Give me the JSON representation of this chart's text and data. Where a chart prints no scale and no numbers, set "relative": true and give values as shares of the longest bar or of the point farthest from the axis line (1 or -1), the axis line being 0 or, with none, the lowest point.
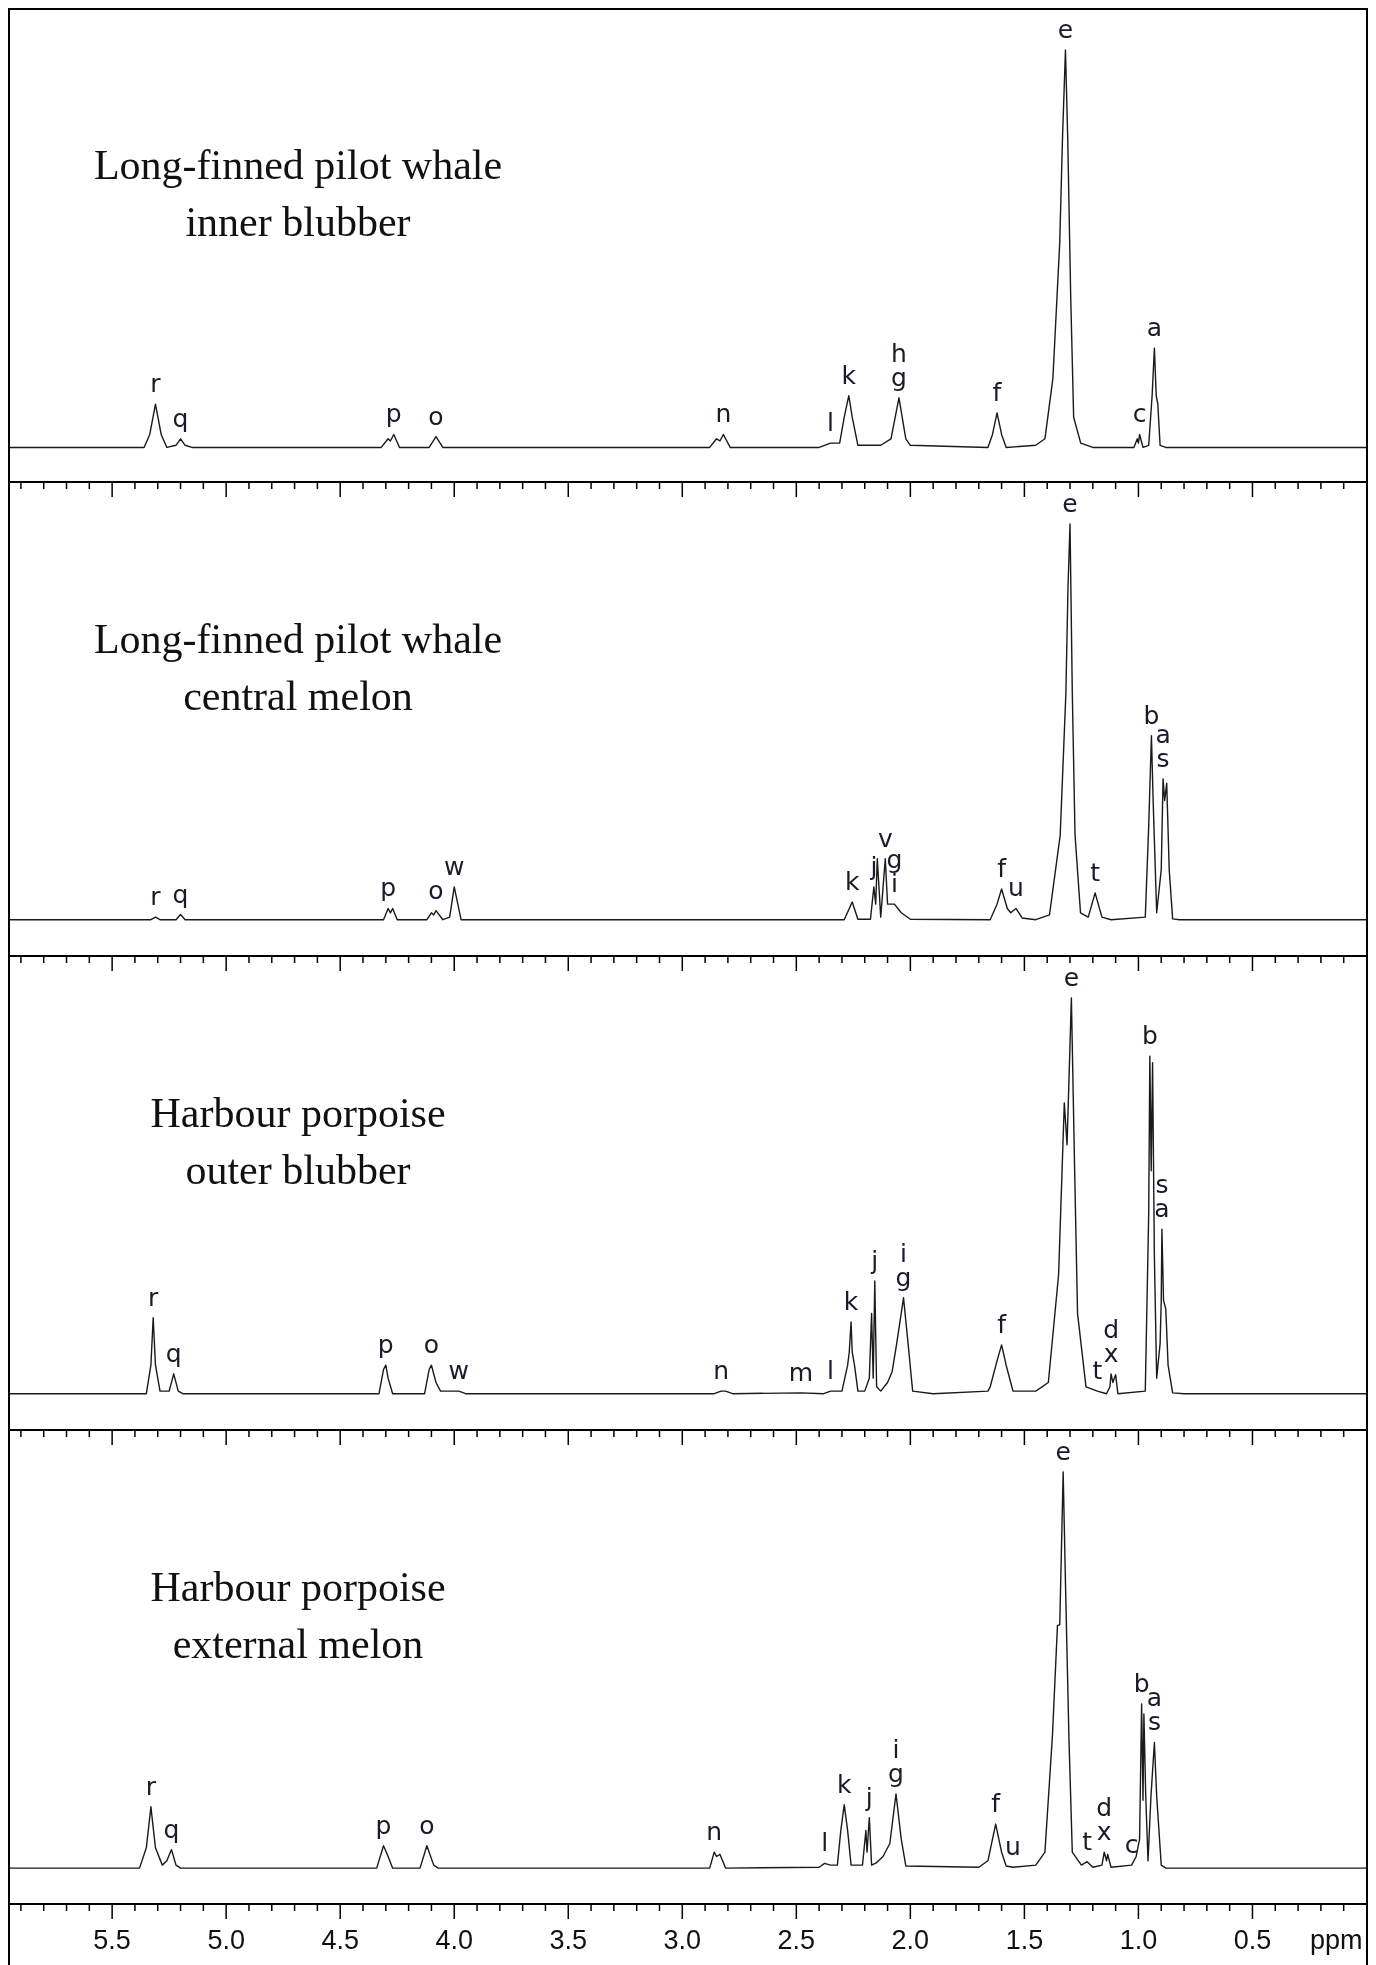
{
  "chart_data": [
    {
      "type": "line",
      "relative": true,
      "title": "Long-finned pilot whale\ninner blubber",
      "xlim": [
        5.95,
        0
      ],
      "tick_labels": false,
      "xticks": [
        {
          "value": 5.9,
          "label": null
        },
        {
          "value": 5.8,
          "label": null
        },
        {
          "value": 5.7,
          "label": null
        },
        {
          "value": 5.6,
          "label": null
        },
        {
          "value": 5.5,
          "label": null
        },
        {
          "value": 5.4,
          "label": null
        },
        {
          "value": 5.3,
          "label": null
        },
        {
          "value": 5.2,
          "label": null
        },
        {
          "value": 5.1,
          "label": null
        },
        {
          "value": 5,
          "label": null
        },
        {
          "value": 4.9,
          "label": null
        },
        {
          "value": 4.8,
          "label": null
        },
        {
          "value": 4.7,
          "label": null
        },
        {
          "value": 4.6,
          "label": null
        },
        {
          "value": 4.5,
          "label": null
        },
        {
          "value": 4.4,
          "label": null
        },
        {
          "value": 4.3,
          "label": null
        },
        {
          "value": 4.2,
          "label": null
        },
        {
          "value": 4.1,
          "label": null
        },
        {
          "value": 4,
          "label": null
        },
        {
          "value": 3.9,
          "label": null
        },
        {
          "value": 3.8,
          "label": null
        },
        {
          "value": 3.7,
          "label": null
        },
        {
          "value": 3.6,
          "label": null
        },
        {
          "value": 3.5,
          "label": null
        },
        {
          "value": 3.4,
          "label": null
        },
        {
          "value": 3.3,
          "label": null
        },
        {
          "value": 3.2,
          "label": null
        },
        {
          "value": 3.1,
          "label": null
        },
        {
          "value": 3,
          "label": null
        },
        {
          "value": 2.9,
          "label": null
        },
        {
          "value": 2.8,
          "label": null
        },
        {
          "value": 2.7,
          "label": null
        },
        {
          "value": 2.6,
          "label": null
        },
        {
          "value": 2.5,
          "label": null
        },
        {
          "value": 2.4,
          "label": null
        },
        {
          "value": 2.3,
          "label": null
        },
        {
          "value": 2.2,
          "label": null
        },
        {
          "value": 2.1,
          "label": null
        },
        {
          "value": 2,
          "label": null
        },
        {
          "value": 1.9,
          "label": null
        },
        {
          "value": 1.8,
          "label": null
        },
        {
          "value": 1.7,
          "label": null
        },
        {
          "value": 1.6,
          "label": null
        },
        {
          "value": 1.5,
          "label": null
        },
        {
          "value": 1.4,
          "label": null
        },
        {
          "value": 1.3,
          "label": null
        },
        {
          "value": 1.2,
          "label": null
        },
        {
          "value": 1.1,
          "label": null
        },
        {
          "value": 1,
          "label": null
        },
        {
          "value": 0.9,
          "label": null
        },
        {
          "value": 0.8,
          "label": null
        },
        {
          "value": 0.7,
          "label": null
        },
        {
          "value": 0.6,
          "label": null
        },
        {
          "value": 0.5,
          "label": null
        },
        {
          "value": 0.4,
          "label": null
        },
        {
          "value": 0.3,
          "label": null
        },
        {
          "value": 0.2,
          "label": null
        },
        {
          "value": 0.1,
          "label": null
        }
      ],
      "x": [
        5.95,
        5.36,
        5.335,
        5.31,
        5.285,
        5.26,
        5.22,
        5.2,
        5.18,
        5.15,
        4.32,
        4.29,
        4.28,
        4.265,
        4.24,
        4.11,
        4.08,
        4.05,
        2.88,
        2.85,
        2.835,
        2.82,
        2.79,
        2.4,
        2.35,
        2.31,
        2.29,
        2.27,
        2.255,
        2.23,
        2.13,
        2.085,
        2.05,
        2.02,
        2.0,
        1.66,
        1.64,
        1.62,
        1.6,
        1.58,
        1.45,
        1.41,
        1.375,
        1.345,
        1.333,
        1.32,
        1.31,
        1.297,
        1.284,
        1.253,
        1.2,
        1.02,
        1.005,
        1.0,
        0.995,
        0.98,
        0.955,
        0.94,
        0.93,
        0.922,
        0.915,
        0.905,
        0.88,
        0.0
      ],
      "series": [
        {
          "color": "#1a1a1a",
          "values": [
            0.08,
            0.08,
            0.11,
            0.18,
            0.11,
            0.08,
            0.085,
            0.1,
            0.085,
            0.08,
            0.08,
            0.1,
            0.095,
            0.11,
            0.08,
            0.08,
            0.105,
            0.08,
            0.08,
            0.1,
            0.095,
            0.11,
            0.08,
            0.08,
            0.09,
            0.09,
            0.15,
            0.2,
            0.15,
            0.085,
            0.085,
            0.1,
            0.195,
            0.1,
            0.085,
            0.08,
            0.11,
            0.16,
            0.11,
            0.08,
            0.085,
            0.1,
            0.24,
            0.555,
            0.795,
            1.0,
            0.795,
            0.43,
            0.15,
            0.09,
            0.08,
            0.08,
            0.1,
            0.09,
            0.11,
            0.08,
            0.085,
            0.2,
            0.31,
            0.2,
            0.18,
            0.085,
            0.08,
            0.08
          ]
        }
      ],
      "annotations": [
        {
          "text": "r",
          "x": 5.31,
          "y": 0.18
        },
        {
          "text": "q",
          "x": 5.2,
          "y": 0.1
        },
        {
          "text": "p",
          "x": 4.265,
          "y": 0.11
        },
        {
          "text": "o",
          "x": 4.08,
          "y": 0.105
        },
        {
          "text": "n",
          "x": 2.82,
          "y": 0.11
        },
        {
          "text": "l",
          "x": 2.35,
          "y": 0.09
        },
        {
          "text": "k",
          "x": 2.27,
          "y": 0.2
        },
        {
          "text": "g",
          "x": 2.05,
          "y": 0.195
        },
        {
          "text": "h",
          "x": 2.05,
          "y": 0.195
        },
        {
          "text": "f",
          "x": 1.62,
          "y": 0.16
        },
        {
          "text": "e",
          "x": 1.32,
          "y": 1.0
        },
        {
          "text": "c",
          "x": 0.995,
          "y": 0.11
        },
        {
          "text": "a",
          "x": 0.93,
          "y": 0.31
        }
      ]
    },
    {
      "type": "line",
      "relative": true,
      "title": "Long-finned pilot whale\ncentral melon",
      "xlim": [
        5.95,
        0
      ],
      "tick_labels": false,
      "xticks": [
        {
          "value": 5.9,
          "label": null
        },
        {
          "value": 5.8,
          "label": null
        },
        {
          "value": 5.7,
          "label": null
        },
        {
          "value": 5.6,
          "label": null
        },
        {
          "value": 5.5,
          "label": null
        },
        {
          "value": 5.4,
          "label": null
        },
        {
          "value": 5.3,
          "label": null
        },
        {
          "value": 5.2,
          "label": null
        },
        {
          "value": 5.1,
          "label": null
        },
        {
          "value": 5,
          "label": null
        },
        {
          "value": 4.9,
          "label": null
        },
        {
          "value": 4.8,
          "label": null
        },
        {
          "value": 4.7,
          "label": null
        },
        {
          "value": 4.6,
          "label": null
        },
        {
          "value": 4.5,
          "label": null
        },
        {
          "value": 4.4,
          "label": null
        },
        {
          "value": 4.3,
          "label": null
        },
        {
          "value": 4.2,
          "label": null
        },
        {
          "value": 4.1,
          "label": null
        },
        {
          "value": 4,
          "label": null
        },
        {
          "value": 3.9,
          "label": null
        },
        {
          "value": 3.8,
          "label": null
        },
        {
          "value": 3.7,
          "label": null
        },
        {
          "value": 3.6,
          "label": null
        },
        {
          "value": 3.5,
          "label": null
        },
        {
          "value": 3.4,
          "label": null
        },
        {
          "value": 3.3,
          "label": null
        },
        {
          "value": 3.2,
          "label": null
        },
        {
          "value": 3.1,
          "label": null
        },
        {
          "value": 3,
          "label": null
        },
        {
          "value": 2.9,
          "label": null
        },
        {
          "value": 2.8,
          "label": null
        },
        {
          "value": 2.7,
          "label": null
        },
        {
          "value": 2.6,
          "label": null
        },
        {
          "value": 2.5,
          "label": null
        },
        {
          "value": 2.4,
          "label": null
        },
        {
          "value": 2.3,
          "label": null
        },
        {
          "value": 2.2,
          "label": null
        },
        {
          "value": 2.1,
          "label": null
        },
        {
          "value": 2,
          "label": null
        },
        {
          "value": 1.9,
          "label": null
        },
        {
          "value": 1.8,
          "label": null
        },
        {
          "value": 1.7,
          "label": null
        },
        {
          "value": 1.6,
          "label": null
        },
        {
          "value": 1.5,
          "label": null
        },
        {
          "value": 1.4,
          "label": null
        },
        {
          "value": 1.3,
          "label": null
        },
        {
          "value": 1.2,
          "label": null
        },
        {
          "value": 1.1,
          "label": null
        },
        {
          "value": 1,
          "label": null
        },
        {
          "value": 0.9,
          "label": null
        },
        {
          "value": 0.8,
          "label": null
        },
        {
          "value": 0.7,
          "label": null
        },
        {
          "value": 0.6,
          "label": null
        },
        {
          "value": 0.5,
          "label": null
        },
        {
          "value": 0.4,
          "label": null
        },
        {
          "value": 0.3,
          "label": null
        },
        {
          "value": 0.2,
          "label": null
        },
        {
          "value": 0.1,
          "label": null
        }
      ],
      "x": [
        5.95,
        5.33,
        5.31,
        5.29,
        5.22,
        5.2,
        5.18,
        4.31,
        4.29,
        4.28,
        4.27,
        4.25,
        4.12,
        4.1,
        4.09,
        4.08,
        4.05,
        4.02,
        4.0,
        3.97,
        2.29,
        2.255,
        2.23,
        2.175,
        2.16,
        2.152,
        2.145,
        2.13,
        2.11,
        2.1,
        2.07,
        2.04,
        2.0,
        1.65,
        1.62,
        1.6,
        1.575,
        1.56,
        1.537,
        1.51,
        1.45,
        1.39,
        1.343,
        1.318,
        1.309,
        1.3,
        1.29,
        1.278,
        1.254,
        1.22,
        1.19,
        1.16,
        1.12,
        0.97,
        0.955,
        0.943,
        0.935,
        0.92,
        0.9,
        0.892,
        0.885,
        0.876,
        0.865,
        0.85,
        0.82,
        0.0
      ],
      "series": [
        {
          "color": "#1a1a1a",
          "values": [
            0.084,
            0.084,
            0.09,
            0.084,
            0.084,
            0.096,
            0.084,
            0.084,
            0.11,
            0.1,
            0.11,
            0.084,
            0.084,
            0.1,
            0.095,
            0.105,
            0.084,
            0.09,
            0.16,
            0.084,
            0.084,
            0.125,
            0.085,
            0.085,
            0.16,
            0.12,
            0.225,
            0.09,
            0.225,
            0.12,
            0.12,
            0.1,
            0.085,
            0.084,
            0.12,
            0.155,
            0.11,
            0.1,
            0.11,
            0.088,
            0.084,
            0.095,
            0.28,
            0.61,
            0.85,
            1.0,
            0.61,
            0.28,
            0.1,
            0.09,
            0.146,
            0.09,
            0.084,
            0.09,
            0.3,
            0.51,
            0.35,
            0.1,
            0.2,
            0.41,
            0.36,
            0.4,
            0.2,
            0.086,
            0.084,
            0.084
          ]
        }
      ],
      "annotations": [
        {
          "text": "r",
          "x": 5.31,
          "y": 0.09
        },
        {
          "text": "q",
          "x": 5.2,
          "y": 0.096
        },
        {
          "text": "p",
          "x": 4.29,
          "y": 0.11
        },
        {
          "text": "o",
          "x": 4.08,
          "y": 0.105
        },
        {
          "text": "w",
          "x": 4.0,
          "y": 0.16
        },
        {
          "text": "k",
          "x": 2.255,
          "y": 0.125
        },
        {
          "text": "j",
          "x": 2.16,
          "y": 0.16
        },
        {
          "text": "v",
          "x": 2.11,
          "y": 0.225
        },
        {
          "text": "i",
          "x": 2.07,
          "y": 0.12
        },
        {
          "text": "g",
          "x": 2.07,
          "y": 0.12
        },
        {
          "text": "f",
          "x": 1.6,
          "y": 0.155
        },
        {
          "text": "u",
          "x": 1.537,
          "y": 0.11
        },
        {
          "text": "e",
          "x": 1.3,
          "y": 1.0
        },
        {
          "text": "t",
          "x": 1.19,
          "y": 0.146
        },
        {
          "text": "b",
          "x": 0.943,
          "y": 0.51
        },
        {
          "text": "s",
          "x": 0.892,
          "y": 0.41
        },
        {
          "text": "a",
          "x": 0.892,
          "y": 0.41
        }
      ]
    },
    {
      "type": "line",
      "relative": true,
      "title": "Harbour porpoise\nouter blubber",
      "xlim": [
        5.95,
        0
      ],
      "tick_labels": false,
      "xticks": [
        {
          "value": 5.9,
          "label": null
        },
        {
          "value": 5.8,
          "label": null
        },
        {
          "value": 5.7,
          "label": null
        },
        {
          "value": 5.6,
          "label": null
        },
        {
          "value": 5.5,
          "label": null
        },
        {
          "value": 5.4,
          "label": null
        },
        {
          "value": 5.3,
          "label": null
        },
        {
          "value": 5.2,
          "label": null
        },
        {
          "value": 5.1,
          "label": null
        },
        {
          "value": 5,
          "label": null
        },
        {
          "value": 4.9,
          "label": null
        },
        {
          "value": 4.8,
          "label": null
        },
        {
          "value": 4.7,
          "label": null
        },
        {
          "value": 4.6,
          "label": null
        },
        {
          "value": 4.5,
          "label": null
        },
        {
          "value": 4.4,
          "label": null
        },
        {
          "value": 4.3,
          "label": null
        },
        {
          "value": 4.2,
          "label": null
        },
        {
          "value": 4.1,
          "label": null
        },
        {
          "value": 4,
          "label": null
        },
        {
          "value": 3.9,
          "label": null
        },
        {
          "value": 3.8,
          "label": null
        },
        {
          "value": 3.7,
          "label": null
        },
        {
          "value": 3.6,
          "label": null
        },
        {
          "value": 3.5,
          "label": null
        },
        {
          "value": 3.4,
          "label": null
        },
        {
          "value": 3.3,
          "label": null
        },
        {
          "value": 3.2,
          "label": null
        },
        {
          "value": 3.1,
          "label": null
        },
        {
          "value": 3,
          "label": null
        },
        {
          "value": 2.9,
          "label": null
        },
        {
          "value": 2.8,
          "label": null
        },
        {
          "value": 2.7,
          "label": null
        },
        {
          "value": 2.6,
          "label": null
        },
        {
          "value": 2.5,
          "label": null
        },
        {
          "value": 2.4,
          "label": null
        },
        {
          "value": 2.3,
          "label": null
        },
        {
          "value": 2.2,
          "label": null
        },
        {
          "value": 2.1,
          "label": null
        },
        {
          "value": 2,
          "label": null
        },
        {
          "value": 1.9,
          "label": null
        },
        {
          "value": 1.8,
          "label": null
        },
        {
          "value": 1.7,
          "label": null
        },
        {
          "value": 1.6,
          "label": null
        },
        {
          "value": 1.5,
          "label": null
        },
        {
          "value": 1.4,
          "label": null
        },
        {
          "value": 1.3,
          "label": null
        },
        {
          "value": 1.2,
          "label": null
        },
        {
          "value": 1.1,
          "label": null
        },
        {
          "value": 1,
          "label": null
        },
        {
          "value": 0.9,
          "label": null
        },
        {
          "value": 0.8,
          "label": null
        },
        {
          "value": 0.7,
          "label": null
        },
        {
          "value": 0.6,
          "label": null
        },
        {
          "value": 0.5,
          "label": null
        },
        {
          "value": 0.4,
          "label": null
        },
        {
          "value": 0.3,
          "label": null
        },
        {
          "value": 0.2,
          "label": null
        },
        {
          "value": 0.1,
          "label": null
        }
      ],
      "x": [
        5.95,
        5.35,
        5.33,
        5.32,
        5.31,
        5.29,
        5.25,
        5.23,
        5.21,
        5.19,
        4.33,
        4.31,
        4.3,
        4.29,
        4.27,
        4.13,
        4.11,
        4.1,
        4.08,
        4.06,
        3.98,
        3.95,
        2.86,
        2.83,
        2.81,
        2.78,
        2.48,
        2.38,
        2.35,
        2.3,
        2.275,
        2.268,
        2.26,
        2.255,
        2.245,
        2.23,
        2.2,
        2.18,
        2.17,
        2.163,
        2.156,
        2.148,
        2.13,
        2.1,
        2.08,
        2.06,
        2.03,
        2.01,
        1.99,
        1.9,
        1.66,
        1.65,
        1.62,
        1.6,
        1.58,
        1.55,
        1.45,
        1.395,
        1.35,
        1.325,
        1.313,
        1.294,
        1.28,
        1.267,
        1.23,
        1.18,
        1.14,
        1.125,
        1.12,
        1.112,
        1.1,
        1.09,
        0.97,
        0.955,
        0.95,
        0.944,
        0.938,
        0.93,
        0.92,
        0.905,
        0.9,
        0.897,
        0.89,
        0.88,
        0.87,
        0.85,
        0.8,
        0.0
      ],
      "series": [
        {
          "color": "#1a1a1a",
          "values": [
            0.084,
            0.084,
            0.15,
            0.26,
            0.15,
            0.09,
            0.09,
            0.13,
            0.09,
            0.084,
            0.084,
            0.14,
            0.15,
            0.12,
            0.084,
            0.084,
            0.14,
            0.15,
            0.11,
            0.09,
            0.09,
            0.084,
            0.084,
            0.09,
            0.09,
            0.084,
            0.086,
            0.084,
            0.09,
            0.09,
            0.15,
            0.18,
            0.25,
            0.18,
            0.15,
            0.09,
            0.09,
            0.12,
            0.27,
            0.12,
            0.345,
            0.1,
            0.09,
            0.11,
            0.135,
            0.2,
            0.306,
            0.2,
            0.09,
            0.084,
            0.09,
            0.1,
            0.16,
            0.197,
            0.15,
            0.09,
            0.09,
            0.11,
            0.36,
            0.757,
            0.66,
            1.0,
            0.61,
            0.27,
            0.1,
            0.09,
            0.084,
            0.1,
            0.13,
            0.11,
            0.128,
            0.084,
            0.09,
            0.5,
            0.865,
            0.6,
            0.85,
            0.4,
            0.12,
            0.2,
            0.3,
            0.465,
            0.3,
            0.28,
            0.15,
            0.086,
            0.084,
            0.084
          ]
        }
      ],
      "annotations": [
        {
          "text": "r",
          "x": 5.32,
          "y": 0.26
        },
        {
          "text": "q",
          "x": 5.23,
          "y": 0.13
        },
        {
          "text": "p",
          "x": 4.3,
          "y": 0.15
        },
        {
          "text": "o",
          "x": 4.1,
          "y": 0.15
        },
        {
          "text": "w",
          "x": 3.98,
          "y": 0.09
        },
        {
          "text": "n",
          "x": 2.83,
          "y": 0.09
        },
        {
          "text": "m",
          "x": 2.48,
          "y": 0.086
        },
        {
          "text": "l",
          "x": 2.35,
          "y": 0.09
        },
        {
          "text": "k",
          "x": 2.26,
          "y": 0.25
        },
        {
          "text": "j",
          "x": 2.156,
          "y": 0.345
        },
        {
          "text": "g",
          "x": 2.03,
          "y": 0.306
        },
        {
          "text": "i",
          "x": 2.03,
          "y": 0.306
        },
        {
          "text": "f",
          "x": 1.6,
          "y": 0.197
        },
        {
          "text": "e",
          "x": 1.294,
          "y": 1.0
        },
        {
          "text": "t",
          "x": 1.18,
          "y": 0.09
        },
        {
          "text": "x",
          "x": 1.12,
          "y": 0.13
        },
        {
          "text": "d",
          "x": 1.12,
          "y": 0.13
        },
        {
          "text": "b",
          "x": 0.95,
          "y": 0.865
        },
        {
          "text": "a",
          "x": 0.897,
          "y": 0.465
        },
        {
          "text": "s",
          "x": 0.897,
          "y": 0.465
        }
      ]
    },
    {
      "type": "line",
      "relative": true,
      "title": "Harbour porpoise\nexternal melon",
      "xlabel": "ppm",
      "xlim": [
        5.95,
        0
      ],
      "tick_labels": "x",
      "xticks": [
        {
          "value": 5.9,
          "label": null
        },
        {
          "value": 5.8,
          "label": null
        },
        {
          "value": 5.7,
          "label": null
        },
        {
          "value": 5.6,
          "label": null
        },
        5.5,
        {
          "value": 5.4,
          "label": null
        },
        {
          "value": 5.3,
          "label": null
        },
        {
          "value": 5.2,
          "label": null
        },
        {
          "value": 5.1,
          "label": null
        },
        {
          "value": 5,
          "label": "5.0"
        },
        {
          "value": 4.9,
          "label": null
        },
        {
          "value": 4.8,
          "label": null
        },
        {
          "value": 4.7,
          "label": null
        },
        {
          "value": 4.6,
          "label": null
        },
        4.5,
        {
          "value": 4.4,
          "label": null
        },
        {
          "value": 4.3,
          "label": null
        },
        {
          "value": 4.2,
          "label": null
        },
        {
          "value": 4.1,
          "label": null
        },
        {
          "value": 4,
          "label": "4.0"
        },
        {
          "value": 3.9,
          "label": null
        },
        {
          "value": 3.8,
          "label": null
        },
        {
          "value": 3.7,
          "label": null
        },
        {
          "value": 3.6,
          "label": null
        },
        3.5,
        {
          "value": 3.4,
          "label": null
        },
        {
          "value": 3.3,
          "label": null
        },
        {
          "value": 3.2,
          "label": null
        },
        {
          "value": 3.1,
          "label": null
        },
        {
          "value": 3,
          "label": "3.0"
        },
        {
          "value": 2.9,
          "label": null
        },
        {
          "value": 2.8,
          "label": null
        },
        {
          "value": 2.7,
          "label": null
        },
        {
          "value": 2.6,
          "label": null
        },
        2.5,
        {
          "value": 2.4,
          "label": null
        },
        {
          "value": 2.3,
          "label": null
        },
        {
          "value": 2.2,
          "label": null
        },
        {
          "value": 2.1,
          "label": null
        },
        {
          "value": 2,
          "label": "2.0"
        },
        {
          "value": 1.9,
          "label": null
        },
        {
          "value": 1.8,
          "label": null
        },
        {
          "value": 1.7,
          "label": null
        },
        {
          "value": 1.6,
          "label": null
        },
        1.5,
        {
          "value": 1.4,
          "label": null
        },
        {
          "value": 1.3,
          "label": null
        },
        {
          "value": 1.2,
          "label": null
        },
        {
          "value": 1.1,
          "label": null
        },
        {
          "value": 1,
          "label": "1.0"
        },
        {
          "value": 0.9,
          "label": null
        },
        {
          "value": 0.8,
          "label": null
        },
        {
          "value": 0.7,
          "label": null
        },
        {
          "value": 0.6,
          "label": null
        },
        0.5,
        {
          "value": 0.4,
          "label": null
        },
        {
          "value": 0.3,
          "label": null
        },
        {
          "value": 0.2,
          "label": null
        },
        {
          "value": 0.1,
          "label": null
        }
      ],
      "x": [
        5.95,
        5.38,
        5.35,
        5.33,
        5.31,
        5.28,
        5.26,
        5.24,
        5.22,
        5.2,
        4.34,
        4.31,
        4.29,
        4.27,
        4.15,
        4.12,
        4.09,
        4.07,
        2.88,
        2.86,
        2.85,
        2.835,
        2.81,
        2.4,
        2.376,
        2.35,
        2.32,
        2.305,
        2.29,
        2.275,
        2.26,
        2.21,
        2.195,
        2.19,
        2.18,
        2.17,
        2.15,
        2.12,
        2.09,
        2.063,
        2.04,
        2.02,
        1.7,
        1.66,
        1.626,
        1.6,
        1.58,
        1.55,
        1.45,
        1.41,
        1.377,
        1.355,
        1.345,
        1.33,
        1.32,
        1.305,
        1.29,
        1.25,
        1.225,
        1.2,
        1.16,
        1.15,
        1.14,
        1.135,
        1.12,
        1.03,
        1.01,
        0.995,
        0.986,
        0.98,
        0.976,
        0.968,
        0.958,
        0.945,
        0.93,
        0.92,
        0.9,
        0.88,
        0.0
      ],
      "series": [
        {
          "color": "#1a1a1a",
          "values": [
            0.083,
            0.083,
            0.13,
            0.225,
            0.13,
            0.09,
            0.1,
            0.126,
            0.09,
            0.083,
            0.083,
            0.135,
            0.11,
            0.083,
            0.083,
            0.135,
            0.09,
            0.083,
            0.083,
            0.12,
            0.11,
            0.115,
            0.083,
            0.085,
            0.094,
            0.09,
            0.09,
            0.17,
            0.23,
            0.17,
            0.09,
            0.09,
            0.17,
            0.12,
            0.2,
            0.09,
            0.095,
            0.11,
            0.14,
            0.255,
            0.15,
            0.088,
            0.085,
            0.1,
            0.185,
            0.12,
            0.088,
            0.085,
            0.09,
            0.12,
            0.39,
            0.645,
            0.646,
            1.0,
            0.745,
            0.39,
            0.12,
            0.09,
            0.098,
            0.085,
            0.09,
            0.12,
            0.1,
            0.115,
            0.085,
            0.09,
            0.11,
            0.15,
            0.463,
            0.24,
            0.44,
            0.25,
            0.1,
            0.25,
            0.374,
            0.25,
            0.09,
            0.083,
            0.083
          ]
        }
      ],
      "annotations": [
        {
          "text": "r",
          "x": 5.33,
          "y": 0.225
        },
        {
          "text": "q",
          "x": 5.24,
          "y": 0.126
        },
        {
          "text": "p",
          "x": 4.31,
          "y": 0.135
        },
        {
          "text": "o",
          "x": 4.12,
          "y": 0.135
        },
        {
          "text": "n",
          "x": 2.86,
          "y": 0.12
        },
        {
          "text": "l",
          "x": 2.376,
          "y": 0.094
        },
        {
          "text": "k",
          "x": 2.29,
          "y": 0.23
        },
        {
          "text": "j",
          "x": 2.18,
          "y": 0.2
        },
        {
          "text": "g",
          "x": 2.063,
          "y": 0.255
        },
        {
          "text": "i",
          "x": 2.063,
          "y": 0.255
        },
        {
          "text": "f",
          "x": 1.626,
          "y": 0.185
        },
        {
          "text": "u",
          "x": 1.55,
          "y": 0.085
        },
        {
          "text": "e",
          "x": 1.33,
          "y": 1.0
        },
        {
          "text": "t",
          "x": 1.225,
          "y": 0.098
        },
        {
          "text": "x",
          "x": 1.15,
          "y": 0.12
        },
        {
          "text": "d",
          "x": 1.15,
          "y": 0.12
        },
        {
          "text": "c",
          "x": 1.03,
          "y": 0.09
        },
        {
          "text": "b",
          "x": 0.986,
          "y": 0.463
        },
        {
          "text": "s",
          "x": 0.93,
          "y": 0.374
        },
        {
          "text": "a",
          "x": 0.93,
          "y": 0.374
        }
      ]
    }
  ]
}
